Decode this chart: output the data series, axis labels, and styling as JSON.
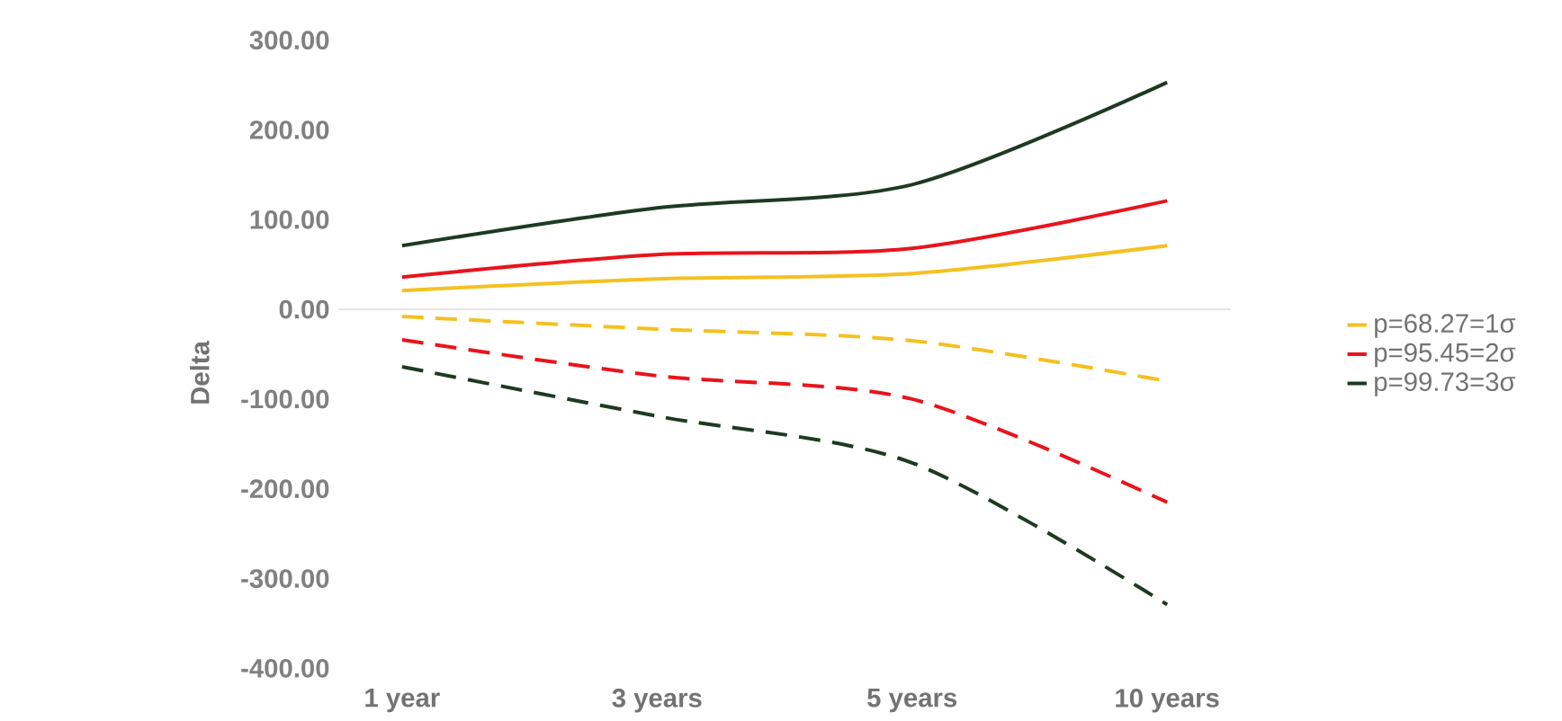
{
  "chart_data": {
    "type": "line",
    "ylabel": "Delta",
    "categories": [
      "1 year",
      "3 years",
      "5 years",
      "10 years"
    ],
    "ylim": [
      -400,
      300
    ],
    "yticks": [
      {
        "value": -400,
        "label": "-400.00"
      },
      {
        "value": -300,
        "label": "-300.00"
      },
      {
        "value": -200,
        "label": "-200.00"
      },
      {
        "value": -100,
        "label": "-100.00"
      },
      {
        "value": 0,
        "label": "0.00"
      },
      {
        "value": 100,
        "label": "100.00"
      },
      {
        "value": 200,
        "label": "200.00"
      },
      {
        "value": 300,
        "label": "300.00"
      }
    ],
    "ref_lines": [
      {
        "axis": "y",
        "value": 0,
        "color": "#e6e6e6",
        "line_style": "solid"
      }
    ],
    "legend": "right",
    "marker": "none",
    "series": [
      {
        "name": "p=68.27=1σ",
        "color": "#f5c020",
        "line_style": "solid",
        "values": [
          21,
          34,
          40,
          71
        ]
      },
      {
        "name": "p=95.45=2σ",
        "color": "#e8141c",
        "line_style": "solid",
        "values": [
          36,
          61,
          68,
          121
        ]
      },
      {
        "name": "p=99.73=3σ",
        "color": "#1e3a22",
        "line_style": "solid",
        "values": [
          71,
          113,
          139,
          253
        ]
      },
      {
        "color": "#f5c020",
        "line_style": "dashed",
        "values": [
          -8,
          -22,
          -35,
          -80
        ]
      },
      {
        "color": "#e8141c",
        "line_style": "dashed",
        "values": [
          -34,
          -74,
          -100,
          -215
        ]
      },
      {
        "color": "#1e3a22",
        "line_style": "dashed",
        "values": [
          -64,
          -119,
          -171,
          -329
        ]
      }
    ]
  }
}
